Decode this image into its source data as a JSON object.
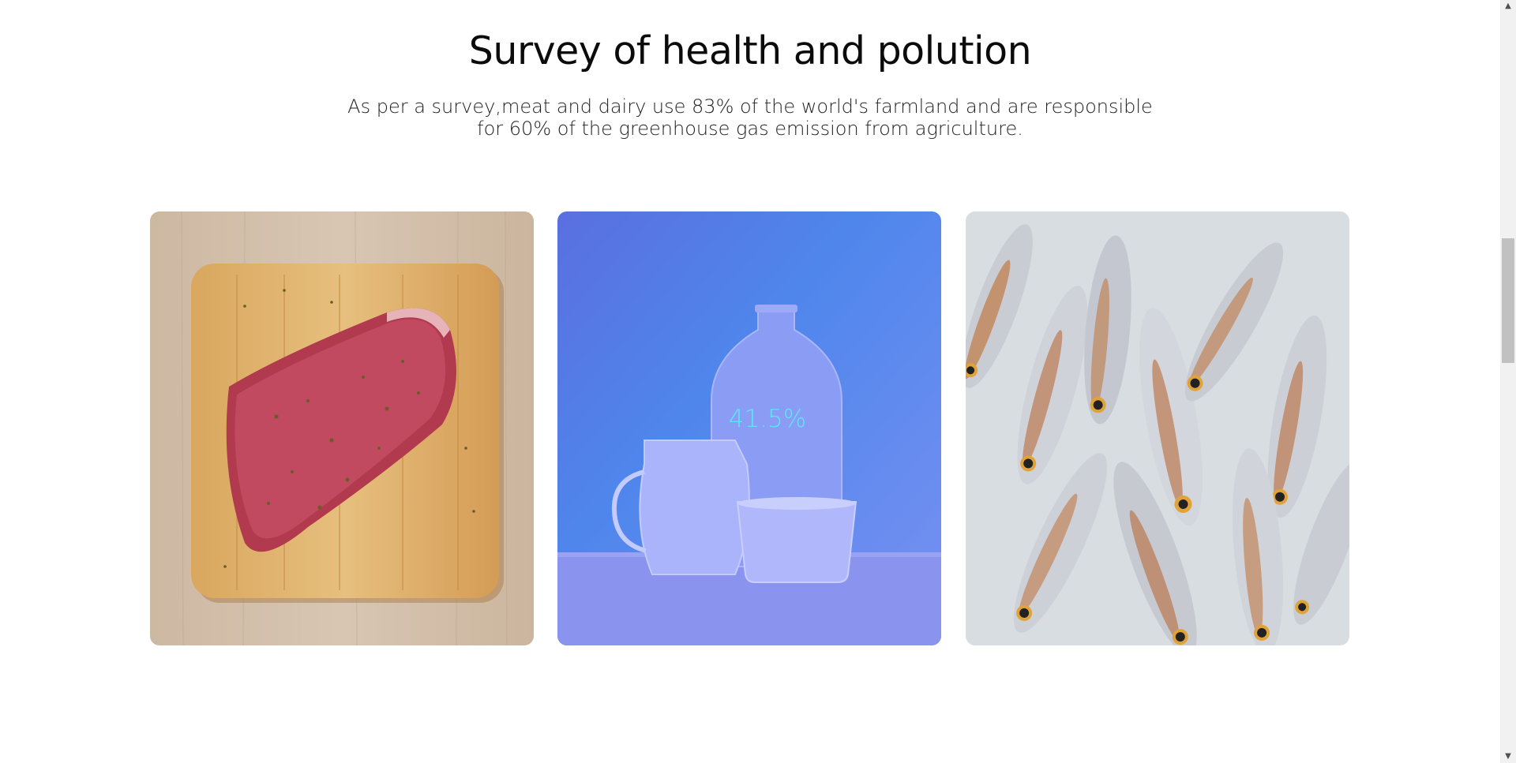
{
  "section": {
    "title": "Survey of health and polution",
    "lead_line1": "As per a survey,meat and dairy use 83% of the world's farmland and are responsible",
    "lead_line2": "for 60% of the greenhouse gas emission from agriculture."
  },
  "cards": [
    {
      "subject": "meat"
    },
    {
      "subject": "dairy",
      "overlay": "41.5%"
    },
    {
      "subject": "fish"
    }
  ],
  "colors": {
    "overlay_blue": "#6a86f0",
    "overlay_text": "#5fe6ff"
  }
}
